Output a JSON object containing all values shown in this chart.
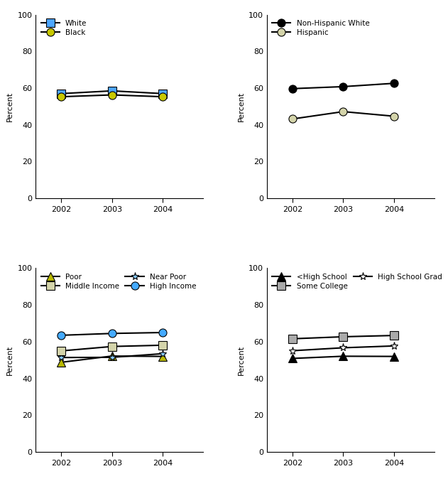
{
  "years": [
    2002,
    2003,
    2004
  ],
  "race": {
    "White": {
      "values": [
        57.0,
        58.5,
        57.0
      ],
      "marker": "s",
      "markercolor": "#4da6ff"
    },
    "Black": {
      "values": [
        55.3,
        56.3,
        55.3
      ],
      "marker": "o",
      "markercolor": "#c8c800"
    }
  },
  "ethnicity": {
    "Non-Hispanic White": {
      "values": [
        59.7,
        60.8,
        62.6
      ],
      "marker": "o",
      "markercolor": "#000000"
    },
    "Hispanic": {
      "values": [
        43.2,
        47.2,
        44.7
      ],
      "marker": "o",
      "markercolor": "#d4d4aa"
    }
  },
  "income": {
    "Poor": {
      "values": [
        48.8,
        52.2,
        52.0
      ],
      "marker": "^",
      "markercolor": "#b8b800"
    },
    "Near Poor": {
      "values": [
        51.4,
        51.5,
        53.5
      ],
      "marker": "*",
      "markercolor": "#88ccff"
    },
    "Middle Income": {
      "values": [
        55.0,
        57.4,
        58.1
      ],
      "marker": "s",
      "markercolor": "#d4d4aa"
    },
    "High Income": {
      "values": [
        63.5,
        64.5,
        65.0
      ],
      "marker": "o",
      "markercolor": "#44aaff"
    }
  },
  "education": {
    "<High School": {
      "values": [
        50.9,
        52.1,
        52.0
      ],
      "marker": "^",
      "markercolor": "#000000"
    },
    "High School Grad": {
      "values": [
        55.1,
        56.7,
        57.7
      ],
      "marker": "*",
      "markercolor": "#ffffff"
    },
    "Some College": {
      "values": [
        61.6,
        62.7,
        63.4
      ],
      "marker": "s",
      "markercolor": "#aaaaaa"
    }
  },
  "ylim": [
    0,
    100
  ],
  "yticks": [
    0,
    20,
    40,
    60,
    80,
    100
  ],
  "ylabel": "Percent",
  "line_color": "#000000",
  "line_width": 1.5,
  "marker_size": 8
}
